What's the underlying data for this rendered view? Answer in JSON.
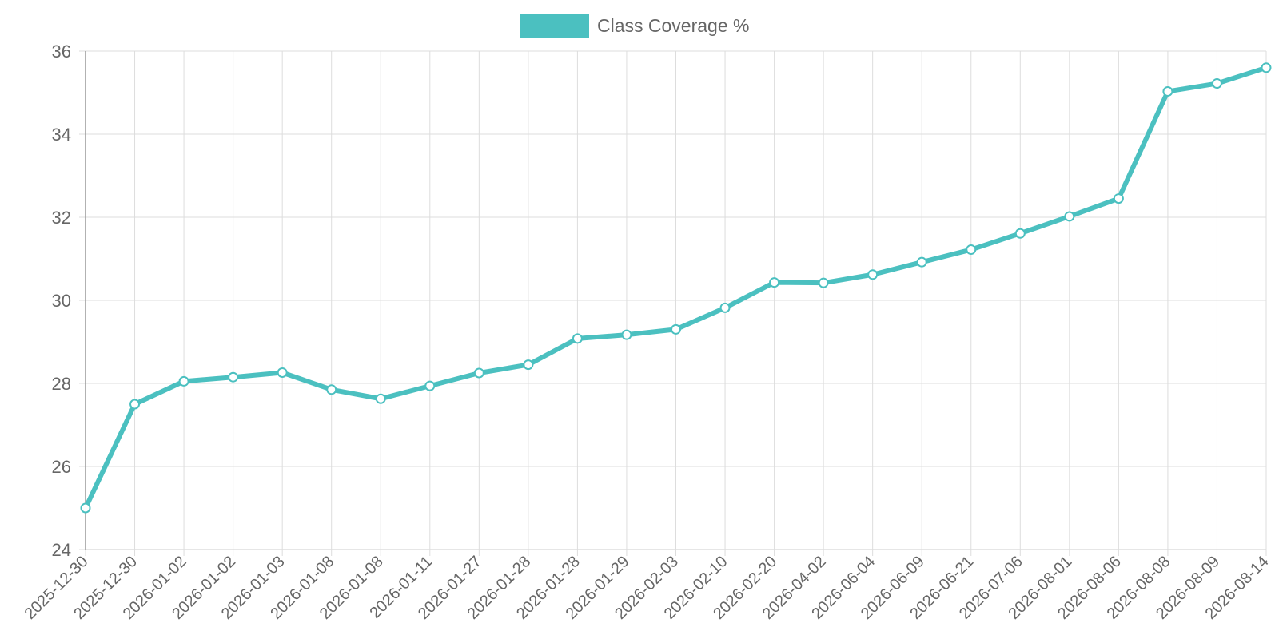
{
  "chart_data": {
    "type": "line",
    "legend": {
      "position": "top-center",
      "label": "Class Coverage %"
    },
    "colors": {
      "series": "#4bc0c0",
      "grid": "#dddddd",
      "axis": "#999999",
      "text": "#666666"
    },
    "x": [
      "2025-12-30",
      "2025-12-30",
      "2026-01-02",
      "2026-01-02",
      "2026-01-03",
      "2026-01-08",
      "2026-01-08",
      "2026-01-11",
      "2026-01-27",
      "2026-01-28",
      "2026-01-28",
      "2026-01-29",
      "2026-02-03",
      "2026-02-10",
      "2026-02-20",
      "2026-04-02",
      "2026-06-04",
      "2026-06-09",
      "2026-06-21",
      "2026-07-06",
      "2026-08-01",
      "2026-08-06",
      "2026-08-08",
      "2026-08-09",
      "2026-08-14"
    ],
    "series": [
      {
        "name": "Class Coverage %",
        "values": [
          25.0,
          27.5,
          28.05,
          28.15,
          28.26,
          27.85,
          27.63,
          27.94,
          28.25,
          28.45,
          29.08,
          29.17,
          29.3,
          29.82,
          30.43,
          30.42,
          30.62,
          30.92,
          31.22,
          31.61,
          32.02,
          32.45,
          35.03,
          35.22,
          35.6
        ]
      }
    ],
    "ylim": [
      24,
      36
    ],
    "yticks": [
      "24",
      "26",
      "28",
      "30",
      "32",
      "34",
      "36"
    ],
    "grid": true
  }
}
